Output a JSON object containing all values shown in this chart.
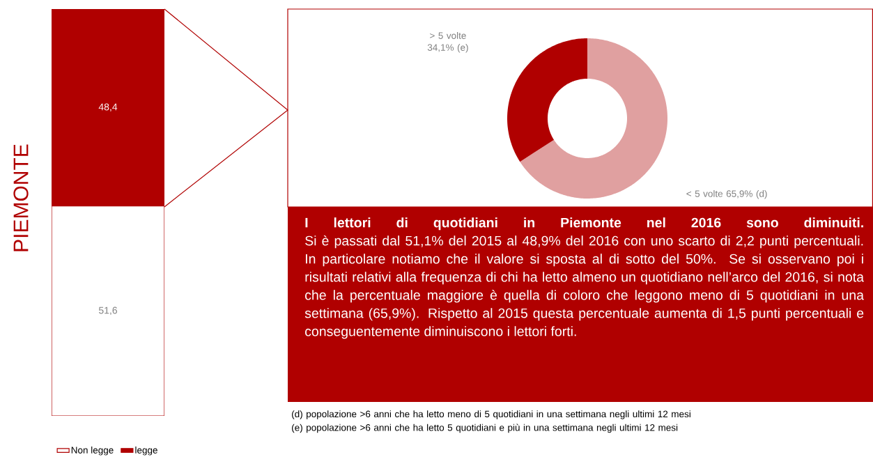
{
  "chart_data": [
    {
      "type": "bar",
      "stacked": true,
      "ylabel": "PIEMONTE",
      "categories": [
        null
      ],
      "legend": "bottom",
      "series": [
        {
          "name": "Non legge",
          "color": "#ffffff",
          "values": [
            51.6
          ],
          "value_labels": [
            "51,6"
          ]
        },
        {
          "name": "legge",
          "color": "#b00000",
          "values": [
            48.4
          ],
          "value_labels": [
            "48,4"
          ]
        }
      ]
    },
    {
      "type": "donut",
      "categories": [
        "< 5 volte 65,9% (d)",
        "> 5 volte 34,1% (e)"
      ],
      "values": [
        65.9,
        34.1
      ],
      "colors": [
        "#e0a0a0",
        "#b00000"
      ],
      "annotations": [
        "(d) popolazione >6 anni che ha letto meno di 5 quotidiani in una settimana negli ultimi 12 mesi",
        "(e) popolazione >6 anni che ha letto 5 quotidiani e più in una settimana negli ultimi 12 mesi"
      ]
    },
    {
      "type": "other",
      "title": "I lettori di quotidiani in Piemonte nel 2016 sono diminuiti.",
      "subtitle": "Si è passati dal 51,1% del 2015 al 48,9% del 2016 con uno scarto di 2,2 punti percentuali. In particolare notiamo che il valore si sposta al di sotto del 50%. Se si osservano poi i risultati relativi alla frequenza di chi ha letto almeno un quotidiano nell’arco del 2016, si nota che la percentuale maggiore è quella di coloro che leggono meno di 5 quotidiani in una settimana (65,9%). Rispetto al 2015 questa percentuale aumenta di 1,5 punti percentuali e conseguentemente diminuiscono i lettori forti."
    }
  ]
}
